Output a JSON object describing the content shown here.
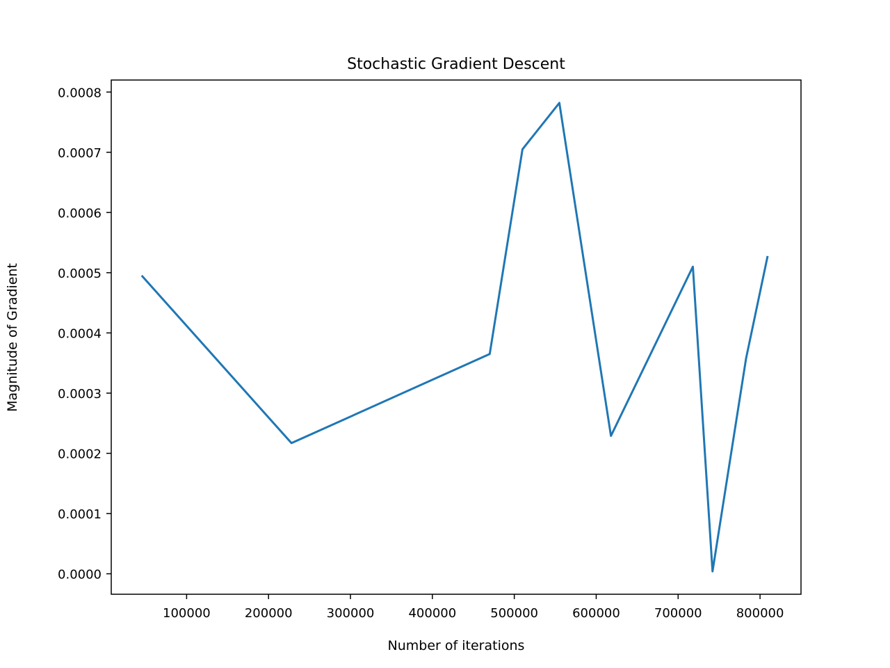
{
  "chart_data": {
    "type": "line",
    "title": "Stochastic Gradient Descent",
    "xlabel": "Number of iterations",
    "ylabel": "Magnitude of Gradient",
    "xlim": [
      8000,
      850000
    ],
    "ylim": [
      -3.4e-05,
      0.00082
    ],
    "xticks": [
      100000,
      200000,
      300000,
      400000,
      500000,
      600000,
      700000,
      800000
    ],
    "xtick_labels": [
      "100000",
      "200000",
      "300000",
      "400000",
      "500000",
      "600000",
      "700000",
      "800000"
    ],
    "yticks": [
      0.0,
      0.0001,
      0.0002,
      0.0003,
      0.0004,
      0.0005,
      0.0006,
      0.0007,
      0.0008
    ],
    "ytick_labels": [
      "0.0000",
      "0.0001",
      "0.0002",
      "0.0003",
      "0.0004",
      "0.0005",
      "0.0006",
      "0.0007",
      "0.0008"
    ],
    "grid": false,
    "series": [
      {
        "color": "#1f77b4",
        "x": [
          46000,
          228000,
          470000,
          510000,
          555000,
          618000,
          718000,
          742000,
          783000,
          809000
        ],
        "y": [
          0.000494,
          0.000217,
          0.000365,
          0.000705,
          0.000782,
          0.000229,
          0.00051,
          4e-06,
          0.000358,
          0.000526
        ]
      }
    ]
  }
}
